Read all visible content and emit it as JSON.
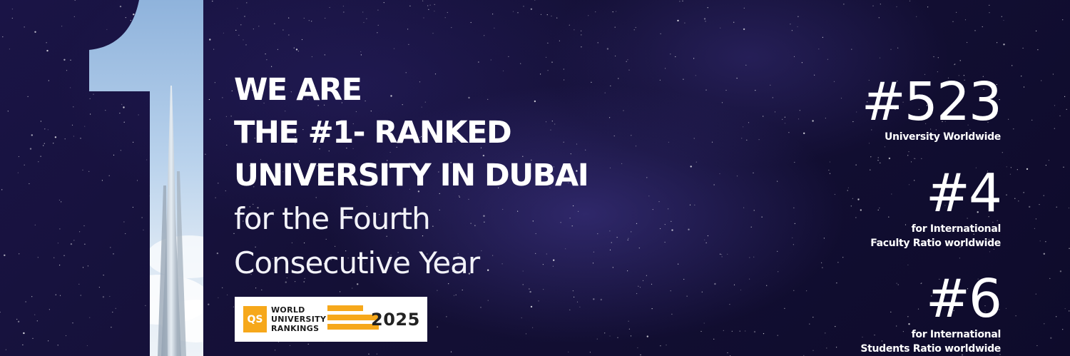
{
  "headline": {
    "bold_lines": [
      "WE ARE",
      "THE #1- RANKED",
      "UNIVERSITY IN DUBAI"
    ],
    "light_lines": [
      "for the Fourth",
      "Consecutive Year"
    ]
  },
  "qs_badge": {
    "logo_text": "QS",
    "lines": [
      "WORLD",
      "UNIVERSITY",
      "RANKINGS"
    ],
    "year": "2025"
  },
  "stats": [
    {
      "value": "#523",
      "label_lines": [
        "University Worldwide"
      ]
    },
    {
      "value": "#4",
      "label_lines": [
        "for International",
        "Faculty Ratio worldwide"
      ]
    },
    {
      "value": "#6",
      "label_lines": [
        "for International",
        "Students Ratio worldwide"
      ]
    }
  ],
  "colors": {
    "background": "#141036",
    "qs_orange": "#f6a81b",
    "text": "#ffffff"
  },
  "icons": [
    "numeral-one-with-burj-khalifa-image",
    "qs-logo-icon"
  ]
}
